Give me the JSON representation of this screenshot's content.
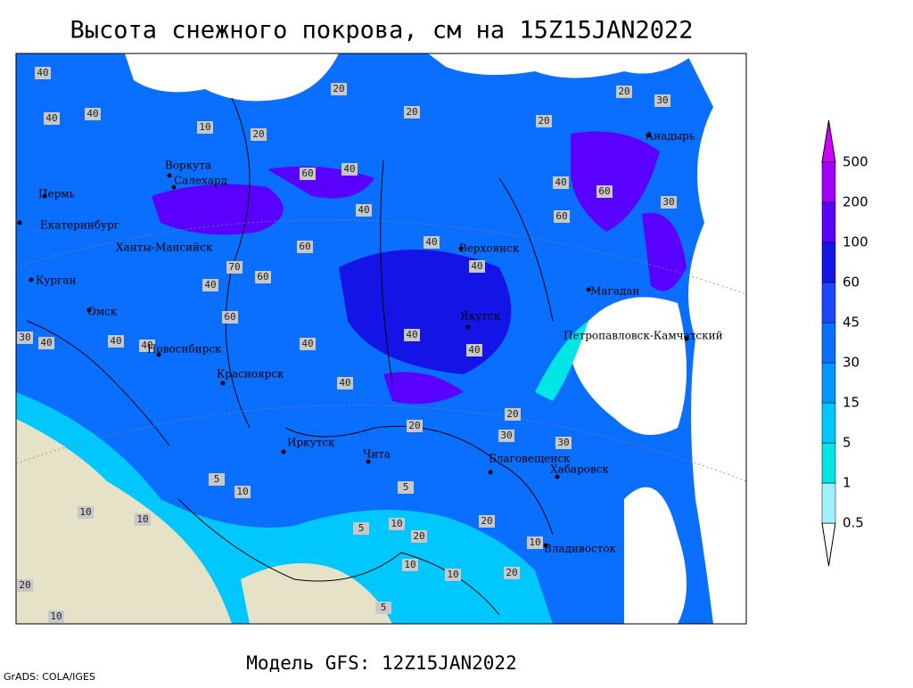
{
  "header": {
    "title": "Высота снежного покрова, см на 15Z15JAN2022"
  },
  "footer": {
    "model": "Модель GFS: 12Z15JAN2022",
    "credit": "GrADS: COLA/IGES"
  },
  "legend": {
    "levels": [
      0.5,
      1,
      5,
      15,
      30,
      45,
      60,
      100,
      200,
      500
    ],
    "colors": [
      "#ffffff",
      "#a0f0ff",
      "#00e6e6",
      "#00c8ff",
      "#0096ff",
      "#0a6eff",
      "#1e46ff",
      "#1414e6",
      "#5a00ff",
      "#a000ff",
      "#d200ff"
    ]
  },
  "cities": [
    {
      "name": "Анадырь"
    },
    {
      "name": "Воркута"
    },
    {
      "name": "Салехард"
    },
    {
      "name": "Пермь"
    },
    {
      "name": "Екатеринбург"
    },
    {
      "name": "Ханты-Мансийск"
    },
    {
      "name": "Верхоянск"
    },
    {
      "name": "Магадан"
    },
    {
      "name": "Курган"
    },
    {
      "name": "Омск"
    },
    {
      "name": "Якутск"
    },
    {
      "name": "Петропавловск-Камчатский"
    },
    {
      "name": "Новосибирск"
    },
    {
      "name": "Красноярск"
    },
    {
      "name": "Иркутск"
    },
    {
      "name": "Чита"
    },
    {
      "name": "Благовещенск"
    },
    {
      "name": "Хабаровск"
    },
    {
      "name": "Владивосток"
    }
  ],
  "contour_labels": [
    20,
    20,
    20,
    20,
    30,
    10,
    20,
    40,
    40,
    40,
    60,
    40,
    40,
    40,
    60,
    60,
    30,
    40,
    40,
    60,
    70,
    60,
    40,
    60,
    40,
    40,
    40,
    40,
    30,
    40,
    40,
    40,
    20,
    20,
    30,
    30,
    5,
    10,
    5,
    10,
    20,
    20,
    10,
    20,
    10,
    10,
    10,
    20,
    10,
    5,
    5,
    10
  ]
}
